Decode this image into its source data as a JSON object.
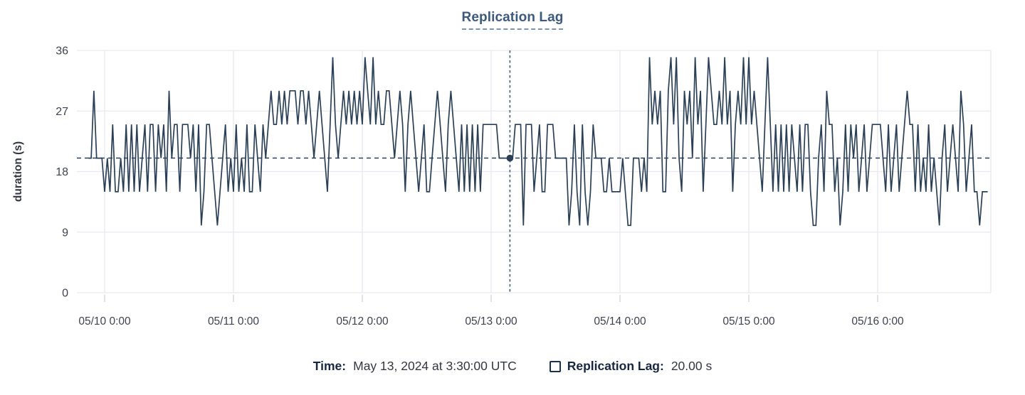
{
  "title": {
    "text": "Replication Lag"
  },
  "tooltip": {
    "time_label": "Time:",
    "time_value": "May 13, 2024 at 3:30:00 UTC",
    "series_label": "Replication Lag:",
    "series_value": "20.00 s"
  },
  "colors": {
    "series": "#2b4056",
    "grid": "#e8e9ee",
    "reference_line": "#2b4056",
    "crosshair": "#3e6375",
    "axis_text": "#3f4250",
    "title": "#3d5a7c"
  },
  "chart_data": {
    "type": "line",
    "title": "Replication Lag",
    "xlabel": "",
    "ylabel": "duration (s)",
    "ylim": [
      0,
      36
    ],
    "yticks": [
      0,
      9,
      18,
      27,
      36
    ],
    "x_tick_labels": [
      "05/10 0:00",
      "05/11 0:00",
      "05/12 0:00",
      "05/13 0:00",
      "05/14 0:00",
      "05/15 0:00",
      "05/16 0:00"
    ],
    "grid": true,
    "legend_position": "bottom-tooltip",
    "reference_line": {
      "value": 20,
      "style": "dashed",
      "color": "#2b4056"
    },
    "crosshair": {
      "hours_from_first_tick": 75.5,
      "value": 20,
      "time_label": "May 13, 2024 at 3:30:00 UTC",
      "color": "#3e6375"
    },
    "series": [
      {
        "name": "Replication Lag",
        "unit": "s",
        "color": "#2b4056",
        "start_offset_hours": -3,
        "interval_hours": 0.5,
        "values": [
          20,
          20,
          30,
          20,
          20,
          20,
          15,
          20,
          15,
          25,
          15,
          15,
          20,
          15,
          25,
          15,
          25,
          15,
          25,
          15,
          20,
          25,
          15,
          25,
          25,
          15,
          25,
          20,
          25,
          15,
          30,
          20,
          25,
          25,
          15,
          25,
          25,
          25,
          20,
          25,
          15,
          25,
          10,
          15,
          25,
          25,
          20,
          15,
          10,
          15,
          20,
          25,
          15,
          20,
          15,
          25,
          15,
          20,
          15,
          25,
          15,
          15,
          25,
          20,
          15,
          25,
          20,
          25,
          30,
          25,
          25,
          30,
          25,
          30,
          25,
          30,
          30,
          30,
          25,
          30,
          30,
          25,
          30,
          25,
          20,
          25,
          30,
          25,
          20,
          15,
          25,
          35,
          25,
          20,
          25,
          30,
          25,
          30,
          25,
          30,
          25,
          30,
          25,
          35,
          30,
          25,
          35,
          25,
          30,
          25,
          25,
          30,
          30,
          25,
          20,
          25,
          30,
          25,
          15,
          25,
          30,
          25,
          20,
          15,
          20,
          25,
          15,
          15,
          20,
          25,
          30,
          25,
          20,
          15,
          25,
          30,
          25,
          20,
          15,
          25,
          15,
          25,
          15,
          25,
          15,
          25,
          15,
          25,
          25,
          25,
          25,
          25,
          25,
          20,
          20,
          20,
          20,
          20,
          20,
          25,
          25,
          25,
          10,
          25,
          25,
          25,
          15,
          20,
          25,
          15,
          15,
          25,
          25,
          25,
          20,
          20,
          20,
          20,
          20,
          10,
          15,
          25,
          15,
          10,
          25,
          15,
          10,
          15,
          25,
          20,
          20,
          20,
          15,
          15,
          20,
          15,
          15,
          15,
          15,
          20,
          15,
          10,
          10,
          20,
          20,
          20,
          15,
          20,
          15,
          35,
          25,
          30,
          25,
          30,
          15,
          15,
          30,
          35,
          25,
          35,
          20,
          15,
          30,
          25,
          30,
          20,
          35,
          25,
          30,
          15,
          25,
          35,
          30,
          25,
          25,
          30,
          25,
          35,
          25,
          30,
          15,
          25,
          30,
          25,
          35,
          25,
          35,
          25,
          30,
          25,
          20,
          15,
          25,
          35,
          25,
          15,
          25,
          15,
          25,
          15,
          25,
          15,
          25,
          20,
          15,
          25,
          15,
          25,
          25,
          15,
          10,
          10,
          20,
          25,
          15,
          30,
          25,
          25,
          15,
          20,
          10,
          15,
          25,
          15,
          25,
          20,
          25,
          15,
          20,
          25,
          15,
          20,
          25,
          25,
          25,
          25,
          20,
          15,
          25,
          15,
          20,
          25,
          15,
          20,
          25,
          30,
          25,
          25,
          15,
          25,
          15,
          20,
          15,
          25,
          15,
          20,
          15,
          10,
          20,
          25,
          15,
          20,
          25,
          20,
          15,
          30,
          25,
          15,
          20,
          25,
          15,
          15,
          10,
          15,
          15,
          15
        ]
      }
    ]
  }
}
